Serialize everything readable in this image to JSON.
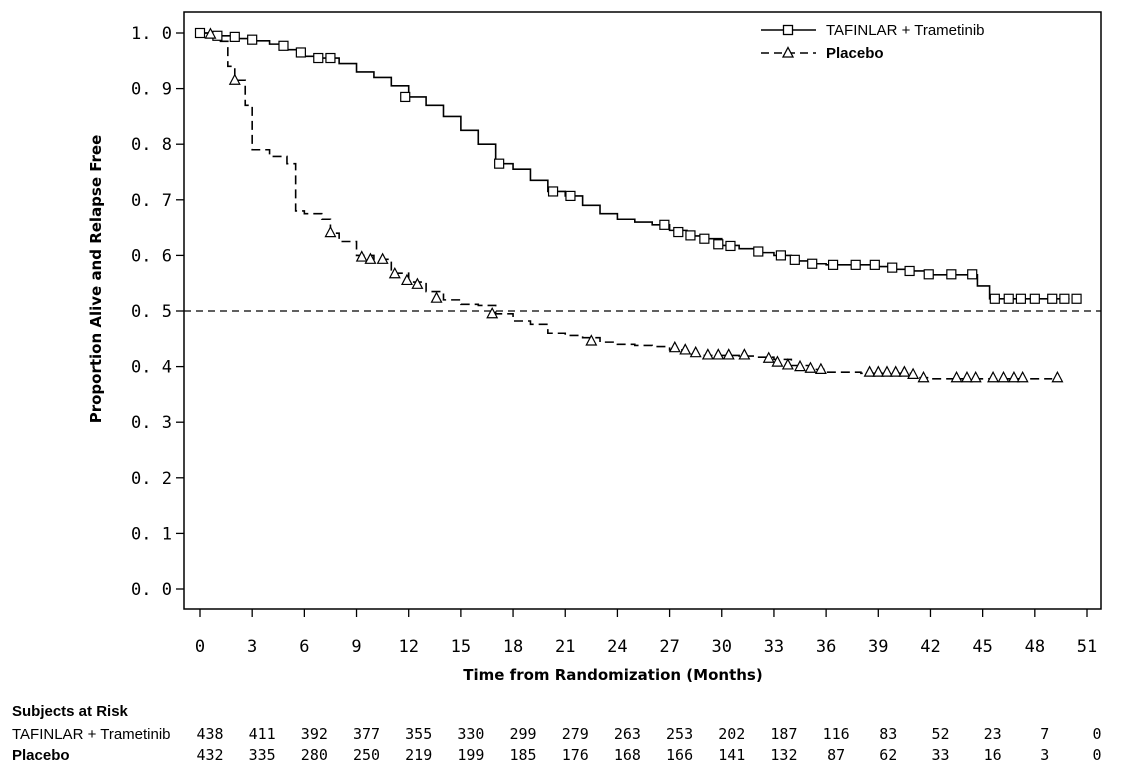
{
  "chart_data": {
    "type": "line",
    "subtype": "kaplan-meier",
    "title": "",
    "xlabel": "Time from Randomization (Months)",
    "ylabel": "Proportion Alive and Relapse Free",
    "xlim": [
      0,
      51
    ],
    "ylim": [
      0,
      1
    ],
    "xticks": [
      "0",
      "3",
      "6",
      "9",
      "12",
      "15",
      "18",
      "21",
      "24",
      "27",
      "30",
      "33",
      "36",
      "39",
      "42",
      "45",
      "48",
      "51"
    ],
    "yticks": [
      "0. 0",
      "0. 1",
      "0. 2",
      "0. 3",
      "0. 4",
      "0. 5",
      "0. 6",
      "0. 7",
      "0. 8",
      "0. 9",
      "1. 0"
    ],
    "reference_line": {
      "y": 0.5,
      "style": "dashed"
    },
    "grid": false,
    "legend_position": "top-right",
    "series": [
      {
        "name": "TAFINLAR + Trametinib",
        "line_style": "solid",
        "marker": "square",
        "points": [
          [
            0,
            1.0
          ],
          [
            1,
            0.995
          ],
          [
            2,
            0.99
          ],
          [
            3,
            0.986
          ],
          [
            4,
            0.98
          ],
          [
            5,
            0.97
          ],
          [
            6,
            0.958
          ],
          [
            7,
            0.955
          ],
          [
            8,
            0.945
          ],
          [
            9,
            0.93
          ],
          [
            10,
            0.92
          ],
          [
            11,
            0.905
          ],
          [
            12,
            0.885
          ],
          [
            13,
            0.87
          ],
          [
            14,
            0.85
          ],
          [
            15,
            0.825
          ],
          [
            16,
            0.8
          ],
          [
            17,
            0.765
          ],
          [
            18,
            0.755
          ],
          [
            19,
            0.735
          ],
          [
            20,
            0.715
          ],
          [
            21,
            0.707
          ],
          [
            22,
            0.69
          ],
          [
            23,
            0.675
          ],
          [
            24,
            0.665
          ],
          [
            25,
            0.66
          ],
          [
            26,
            0.655
          ],
          [
            27,
            0.645
          ],
          [
            28,
            0.635
          ],
          [
            29,
            0.63
          ],
          [
            30,
            0.618
          ],
          [
            31,
            0.612
          ],
          [
            32,
            0.605
          ],
          [
            33,
            0.6
          ],
          [
            34,
            0.59
          ],
          [
            35,
            0.585
          ],
          [
            36,
            0.583
          ],
          [
            37,
            0.583
          ],
          [
            38,
            0.583
          ],
          [
            39,
            0.58
          ],
          [
            40,
            0.575
          ],
          [
            41,
            0.572
          ],
          [
            42,
            0.565
          ],
          [
            43,
            0.565
          ],
          [
            44,
            0.565
          ],
          [
            44.7,
            0.545
          ],
          [
            45.4,
            0.522
          ],
          [
            46,
            0.522
          ],
          [
            47,
            0.522
          ],
          [
            48,
            0.522
          ],
          [
            49,
            0.522
          ],
          [
            50,
            0.522
          ]
        ],
        "censored": [
          [
            0,
            1.0
          ],
          [
            1,
            0.995
          ],
          [
            2,
            0.993
          ],
          [
            3,
            0.988
          ],
          [
            4.8,
            0.977
          ],
          [
            5.8,
            0.965
          ],
          [
            6.8,
            0.955
          ],
          [
            7.5,
            0.955
          ],
          [
            11.8,
            0.885
          ],
          [
            17.2,
            0.765
          ],
          [
            20.3,
            0.715
          ],
          [
            21.3,
            0.707
          ],
          [
            26.7,
            0.655
          ],
          [
            27.5,
            0.642
          ],
          [
            28.2,
            0.636
          ],
          [
            29,
            0.63
          ],
          [
            29.8,
            0.62
          ],
          [
            30.5,
            0.617
          ],
          [
            32.1,
            0.607
          ],
          [
            33.4,
            0.6
          ],
          [
            34.2,
            0.592
          ],
          [
            35.2,
            0.585
          ],
          [
            36.4,
            0.583
          ],
          [
            37.7,
            0.583
          ],
          [
            38.8,
            0.583
          ],
          [
            39.8,
            0.578
          ],
          [
            40.8,
            0.572
          ],
          [
            41.9,
            0.566
          ],
          [
            43.2,
            0.566
          ],
          [
            44.4,
            0.566
          ],
          [
            45.7,
            0.522
          ],
          [
            46.5,
            0.522
          ],
          [
            47.2,
            0.522
          ],
          [
            48,
            0.522
          ],
          [
            49,
            0.522
          ],
          [
            49.7,
            0.522
          ],
          [
            50.4,
            0.522
          ]
        ]
      },
      {
        "name": "Placebo",
        "line_style": "dashed",
        "marker": "triangle",
        "points": [
          [
            0,
            1.0
          ],
          [
            1,
            0.985
          ],
          [
            1.6,
            0.94
          ],
          [
            2,
            0.915
          ],
          [
            2.6,
            0.87
          ],
          [
            3,
            0.79
          ],
          [
            4,
            0.778
          ],
          [
            5,
            0.765
          ],
          [
            5.5,
            0.68
          ],
          [
            6,
            0.675
          ],
          [
            7,
            0.665
          ],
          [
            7.5,
            0.64
          ],
          [
            8,
            0.625
          ],
          [
            9,
            0.6
          ],
          [
            10,
            0.593
          ],
          [
            11,
            0.568
          ],
          [
            12,
            0.552
          ],
          [
            13,
            0.535
          ],
          [
            14,
            0.52
          ],
          [
            15,
            0.512
          ],
          [
            16,
            0.51
          ],
          [
            17,
            0.495
          ],
          [
            18,
            0.482
          ],
          [
            19,
            0.476
          ],
          [
            20,
            0.46
          ],
          [
            21,
            0.456
          ],
          [
            22,
            0.452
          ],
          [
            23,
            0.444
          ],
          [
            24,
            0.44
          ],
          [
            25,
            0.438
          ],
          [
            26,
            0.436
          ],
          [
            27,
            0.43
          ],
          [
            28,
            0.422
          ],
          [
            29,
            0.42
          ],
          [
            30,
            0.42
          ],
          [
            31,
            0.419
          ],
          [
            32,
            0.417
          ],
          [
            33,
            0.413
          ],
          [
            34,
            0.402
          ],
          [
            35,
            0.395
          ],
          [
            36,
            0.39
          ],
          [
            37,
            0.39
          ],
          [
            38,
            0.388
          ],
          [
            39,
            0.388
          ],
          [
            40,
            0.388
          ],
          [
            41,
            0.38
          ],
          [
            42,
            0.378
          ],
          [
            43,
            0.378
          ],
          [
            44,
            0.378
          ],
          [
            45,
            0.378
          ],
          [
            46,
            0.378
          ],
          [
            47,
            0.378
          ],
          [
            48,
            0.378
          ],
          [
            49,
            0.378
          ]
        ],
        "censored": [
          [
            0.6,
            0.998
          ],
          [
            2,
            0.915
          ],
          [
            7.5,
            0.641
          ],
          [
            9.3,
            0.597
          ],
          [
            9.8,
            0.593
          ],
          [
            10.5,
            0.593
          ],
          [
            11.2,
            0.567
          ],
          [
            11.9,
            0.555
          ],
          [
            12.5,
            0.548
          ],
          [
            13.6,
            0.523
          ],
          [
            16.8,
            0.495
          ],
          [
            22.5,
            0.446
          ],
          [
            27.3,
            0.434
          ],
          [
            27.9,
            0.43
          ],
          [
            28.5,
            0.425
          ],
          [
            29.2,
            0.421
          ],
          [
            29.8,
            0.421
          ],
          [
            30.4,
            0.421
          ],
          [
            31.3,
            0.421
          ],
          [
            32.7,
            0.415
          ],
          [
            33.2,
            0.408
          ],
          [
            33.8,
            0.403
          ],
          [
            34.5,
            0.4
          ],
          [
            35.1,
            0.397
          ],
          [
            35.7,
            0.395
          ],
          [
            38.5,
            0.39
          ],
          [
            39,
            0.39
          ],
          [
            39.5,
            0.39
          ],
          [
            40,
            0.39
          ],
          [
            40.5,
            0.39
          ],
          [
            41,
            0.386
          ],
          [
            41.6,
            0.38
          ],
          [
            43.5,
            0.38
          ],
          [
            44.1,
            0.38
          ],
          [
            44.6,
            0.38
          ],
          [
            45.6,
            0.38
          ],
          [
            46.2,
            0.38
          ],
          [
            46.8,
            0.38
          ],
          [
            47.3,
            0.38
          ],
          [
            49.3,
            0.38
          ]
        ]
      }
    ],
    "at_risk": {
      "title": "Subjects at Risk",
      "rows": [
        {
          "label": "TAFINLAR + Trametinib",
          "values": [
            "438",
            "411",
            "392",
            "377",
            "355",
            "330",
            "299",
            "279",
            "263",
            "253",
            "202",
            "187",
            "116",
            "83",
            "52",
            "23",
            "7",
            "0"
          ]
        },
        {
          "label": "Placebo",
          "values": [
            "432",
            "335",
            "280",
            "250",
            "219",
            "199",
            "185",
            "176",
            "168",
            "166",
            "141",
            "132",
            "87",
            "62",
            "33",
            "16",
            "3",
            "0"
          ]
        }
      ]
    }
  }
}
